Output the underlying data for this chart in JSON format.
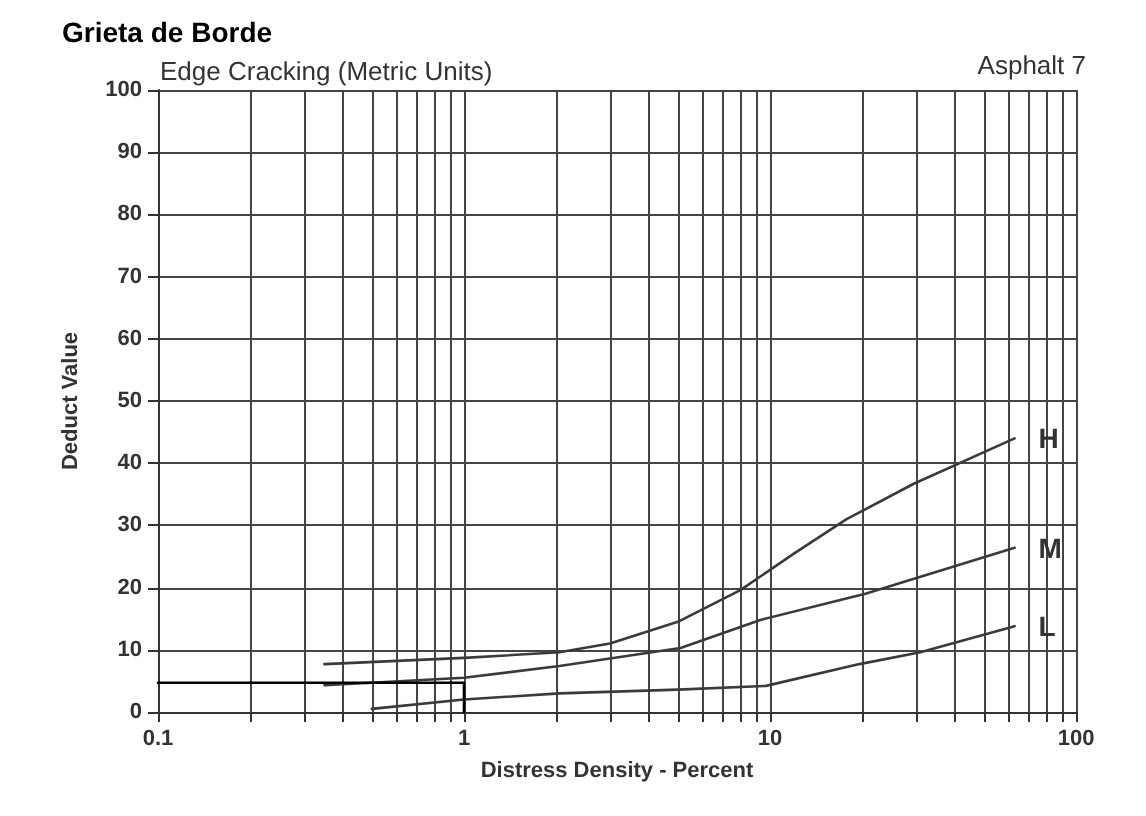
{
  "chart_data": {
    "type": "line",
    "title": "Grieta de Borde",
    "subtitle": "Edge Cracking (Metric Units)",
    "annotations": [
      "Asphalt 7"
    ],
    "xlabel": "Distress Density - Percent",
    "ylabel": "Deduct Value",
    "series": [
      {
        "name": "H",
        "color": "#3a3a3a",
        "x": [
          0.35,
          1,
          2.05,
          3,
          5,
          8,
          12,
          17.8,
          29.5,
          63
        ],
        "values": [
          7.7,
          8.7,
          9.6,
          11,
          14.5,
          19.6,
          25.5,
          31,
          36.7,
          44
        ]
      },
      {
        "name": "M",
        "color": "#3a3a3a",
        "x": [
          0.35,
          1,
          2.05,
          5.1,
          9.3,
          20.5,
          63
        ],
        "values": [
          4.3,
          5.5,
          7.4,
          10.3,
          14.8,
          19,
          26.4
        ]
      },
      {
        "name": "L",
        "color": "#3a3a3a",
        "x": [
          0.5,
          1,
          2.05,
          5,
          9.7,
          19.6,
          31,
          63
        ],
        "values": [
          0.5,
          2,
          3,
          3.6,
          4.2,
          7.7,
          9.6,
          13.8
        ]
      },
      {
        "color": "#000000",
        "x": [
          0.1,
          1,
          1
        ],
        "values": [
          4.7,
          4.7,
          0
        ]
      }
    ],
    "log": "x",
    "marker": "none",
    "line_style": "solid",
    "grid": true,
    "legend": false,
    "xlim": [
      0.1,
      100
    ],
    "xticks": [
      0.1,
      {
        "value": 0.2,
        "label": null
      },
      {
        "value": 0.3,
        "label": null
      },
      {
        "value": 0.4,
        "label": null
      },
      {
        "value": 0.5,
        "label": null
      },
      {
        "value": 0.6,
        "label": null
      },
      {
        "value": 0.7,
        "label": null
      },
      {
        "value": 0.8,
        "label": null
      },
      {
        "value": 0.9,
        "label": null
      },
      1,
      {
        "value": 2,
        "label": null
      },
      {
        "value": 3,
        "label": null
      },
      {
        "value": 4,
        "label": null
      },
      {
        "value": 5,
        "label": null
      },
      {
        "value": 6,
        "label": null
      },
      {
        "value": 7,
        "label": null
      },
      {
        "value": 8,
        "label": null
      },
      {
        "value": 9,
        "label": null
      },
      10,
      {
        "value": 20,
        "label": null
      },
      {
        "value": 30,
        "label": null
      },
      {
        "value": 40,
        "label": null
      },
      {
        "value": 50,
        "label": null
      },
      {
        "value": 60,
        "label": null
      },
      {
        "value": 70,
        "label": null
      },
      {
        "value": 80,
        "label": null
      },
      {
        "value": 90,
        "label": null
      },
      100
    ],
    "ylim": [
      0,
      100
    ],
    "yticks": [
      0,
      10,
      20,
      30,
      40,
      50,
      60,
      70,
      80,
      90,
      100
    ]
  }
}
